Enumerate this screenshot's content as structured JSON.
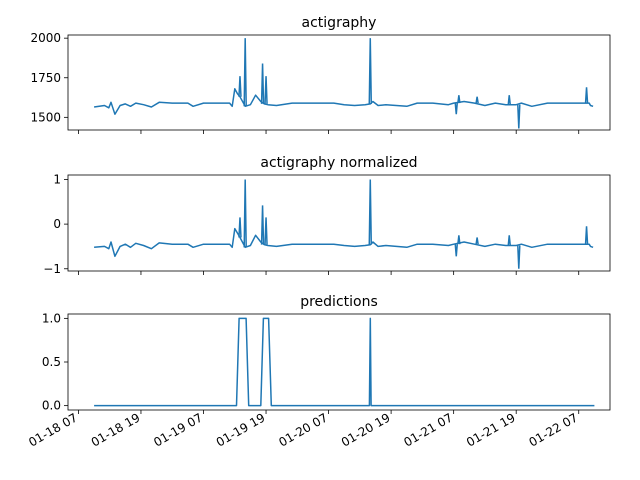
{
  "chart_data": [
    {
      "type": "line",
      "title": "actigraphy",
      "ylim": [
        1420,
        2020
      ],
      "yticks": [
        1500,
        1750,
        2000
      ],
      "ytick_labels": [
        "1500",
        "1750",
        "2000"
      ],
      "series": [
        {
          "color": "#1f77b4",
          "x": [
            "01-18 10:00",
            "01-18 12:00",
            "01-18 12:50",
            "01-18 13:15",
            "01-18 14:00",
            "01-18 15:00",
            "01-18 16:00",
            "01-18 17:00",
            "01-18 18:00",
            "01-18 19:30",
            "01-18 21:00",
            "01-18 22:30",
            "01-19 01:00",
            "01-19 04:00",
            "01-19 05:00",
            "01-19 07:00",
            "01-19 09:00",
            "01-19 11:00",
            "01-19 12:00",
            "01-19 12:30",
            "01-19 13:00",
            "01-19 13:30",
            "01-19 14:00",
            "01-19 15:00",
            "01-19 16:00",
            "01-19 17:00",
            "01-19 18:00",
            "01-19 18:40",
            "01-19 19:20",
            "01-19 21:00",
            "01-20 00:00",
            "01-20 03:00",
            "01-20 06:00",
            "01-20 08:00",
            "01-20 10:00",
            "01-20 12:00",
            "01-20 14:00",
            "01-20 15:00",
            "01-20 15:30",
            "01-20 16:30",
            "01-20 18:00",
            "01-20 20:00",
            "01-20 22:00",
            "01-21 00:00",
            "01-21 03:00",
            "01-21 06:00",
            "01-21 07:00",
            "01-21 09:00",
            "01-21 11:00",
            "01-21 13:00",
            "01-21 15:00",
            "01-21 17:00",
            "01-21 19:00",
            "01-21 20:00",
            "01-21 22:00",
            "01-22 01:00",
            "01-22 04:00",
            "01-22 07:00",
            "01-22 08:00",
            "01-22 09:00",
            "01-22 09:15",
            "01-22 09:45"
          ],
          "y": [
            1565,
            1575,
            1560,
            1595,
            1520,
            1575,
            1585,
            1570,
            1590,
            1580,
            1565,
            1595,
            1590,
            1590,
            1570,
            1590,
            1590,
            1590,
            1590,
            1570,
            1680,
            1650,
            1630,
            1570,
            1580,
            1640,
            1600,
            1585,
            1580,
            1575,
            1590,
            1590,
            1590,
            1590,
            1580,
            1575,
            1580,
            1585,
            1600,
            1575,
            1580,
            1575,
            1570,
            1590,
            1590,
            1580,
            1590,
            1600,
            1590,
            1575,
            1590,
            1580,
            1580,
            1590,
            1570,
            1590,
            1590,
            1590,
            1590,
            1590,
            1575,
            1570
          ]
        }
      ],
      "spikes": [
        {
          "x": "01-19 14:00",
          "y": 1760
        },
        {
          "x": "01-19 15:00",
          "y": 2000
        },
        {
          "x": "01-19 18:20",
          "y": 1840
        },
        {
          "x": "01-19 19:00",
          "y": 1760
        },
        {
          "x": "01-20 15:00",
          "y": 2000
        },
        {
          "x": "01-21 07:30",
          "y": 1520
        },
        {
          "x": "01-21 08:00",
          "y": 1640
        },
        {
          "x": "01-21 11:30",
          "y": 1630
        },
        {
          "x": "01-21 17:40",
          "y": 1640
        },
        {
          "x": "01-21 19:30",
          "y": 1430
        },
        {
          "x": "01-22 08:30",
          "y": 1690
        }
      ]
    },
    {
      "type": "line",
      "title": "actigraphy normalized",
      "ylim": [
        -1.05,
        1.1
      ],
      "yticks": [
        -1,
        0,
        1
      ],
      "ytick_labels": [
        "−1",
        "0",
        "1"
      ],
      "series": [
        {
          "color": "#1f77b4",
          "x": [
            "01-18 10:00",
            "01-18 12:00",
            "01-18 12:50",
            "01-18 13:15",
            "01-18 14:00",
            "01-18 15:00",
            "01-18 16:00",
            "01-18 17:00",
            "01-18 18:00",
            "01-18 19:30",
            "01-18 21:00",
            "01-18 22:30",
            "01-19 01:00",
            "01-19 04:00",
            "01-19 05:00",
            "01-19 07:00",
            "01-19 09:00",
            "01-19 11:00",
            "01-19 12:00",
            "01-19 12:30",
            "01-19 13:00",
            "01-19 13:30",
            "01-19 14:00",
            "01-19 15:00",
            "01-19 16:00",
            "01-19 17:00",
            "01-19 18:00",
            "01-19 18:40",
            "01-19 19:20",
            "01-19 21:00",
            "01-20 00:00",
            "01-20 03:00",
            "01-20 06:00",
            "01-20 08:00",
            "01-20 10:00",
            "01-20 12:00",
            "01-20 14:00",
            "01-20 15:00",
            "01-20 15:30",
            "01-20 16:30",
            "01-20 18:00",
            "01-20 20:00",
            "01-20 22:00",
            "01-21 00:00",
            "01-21 03:00",
            "01-21 06:00",
            "01-21 07:00",
            "01-21 09:00",
            "01-21 11:00",
            "01-21 13:00",
            "01-21 15:00",
            "01-21 17:00",
            "01-21 19:00",
            "01-21 20:00",
            "01-21 22:00",
            "01-22 01:00",
            "01-22 04:00",
            "01-22 07:00",
            "01-22 08:00",
            "01-22 09:00",
            "01-22 09:15",
            "01-22 09:45"
          ],
          "y": [
            -0.52,
            -0.5,
            -0.55,
            -0.4,
            -0.72,
            -0.5,
            -0.45,
            -0.52,
            -0.43,
            -0.48,
            -0.55,
            -0.42,
            -0.45,
            -0.45,
            -0.52,
            -0.45,
            -0.45,
            -0.45,
            -0.45,
            -0.52,
            -0.1,
            -0.2,
            -0.3,
            -0.52,
            -0.48,
            -0.25,
            -0.4,
            -0.46,
            -0.48,
            -0.5,
            -0.45,
            -0.45,
            -0.45,
            -0.45,
            -0.48,
            -0.5,
            -0.48,
            -0.46,
            -0.4,
            -0.5,
            -0.48,
            -0.5,
            -0.52,
            -0.45,
            -0.45,
            -0.48,
            -0.45,
            -0.4,
            -0.45,
            -0.5,
            -0.45,
            -0.48,
            -0.48,
            -0.45,
            -0.52,
            -0.45,
            -0.45,
            -0.45,
            -0.45,
            -0.45,
            -0.5,
            -0.52
          ]
        }
      ],
      "spikes": [
        {
          "x": "01-19 14:00",
          "y": 0.15
        },
        {
          "x": "01-19 15:00",
          "y": 1.0
        },
        {
          "x": "01-19 18:20",
          "y": 0.42
        },
        {
          "x": "01-19 19:00",
          "y": 0.15
        },
        {
          "x": "01-20 15:00",
          "y": 1.0
        },
        {
          "x": "01-21 07:30",
          "y": -0.72
        },
        {
          "x": "01-21 08:00",
          "y": -0.25
        },
        {
          "x": "01-21 11:30",
          "y": -0.3
        },
        {
          "x": "01-21 17:40",
          "y": -0.25
        },
        {
          "x": "01-21 19:30",
          "y": -1.0
        },
        {
          "x": "01-22 08:30",
          "y": -0.05
        }
      ]
    },
    {
      "type": "line",
      "title": "predictions",
      "ylim": [
        -0.05,
        1.05
      ],
      "yticks": [
        0.0,
        0.5,
        1.0
      ],
      "ytick_labels": [
        "0.0",
        "0.5",
        "1.0"
      ],
      "series": [
        {
          "color": "#1f77b4",
          "x": [
            "01-18 10:00",
            "01-19 13:20",
            "01-19 13:50",
            "01-19 15:10",
            "01-19 15:40",
            "01-19 18:00",
            "01-19 18:30",
            "01-19 19:30",
            "01-19 20:00",
            "01-20 14:50",
            "01-20 15:00",
            "01-20 15:10",
            "01-22 10:00"
          ],
          "y": [
            0,
            0,
            1,
            1,
            0,
            0,
            1,
            1,
            0,
            0,
            1,
            0,
            0
          ]
        }
      ]
    }
  ],
  "x_axis": {
    "ticks": [
      "01-18 07:00",
      "01-18 19:00",
      "01-19 07:00",
      "01-19 19:00",
      "01-20 07:00",
      "01-20 19:00",
      "01-21 07:00",
      "01-21 19:00",
      "01-22 07:00"
    ],
    "tick_labels": [
      "01-18 07",
      "01-18 19",
      "01-19 07",
      "01-19 19",
      "01-20 07",
      "01-20 19",
      "01-21 07",
      "01-21 19",
      "01-22 07"
    ],
    "range": [
      "01-18 05:00",
      "01-22 13:00"
    ]
  }
}
